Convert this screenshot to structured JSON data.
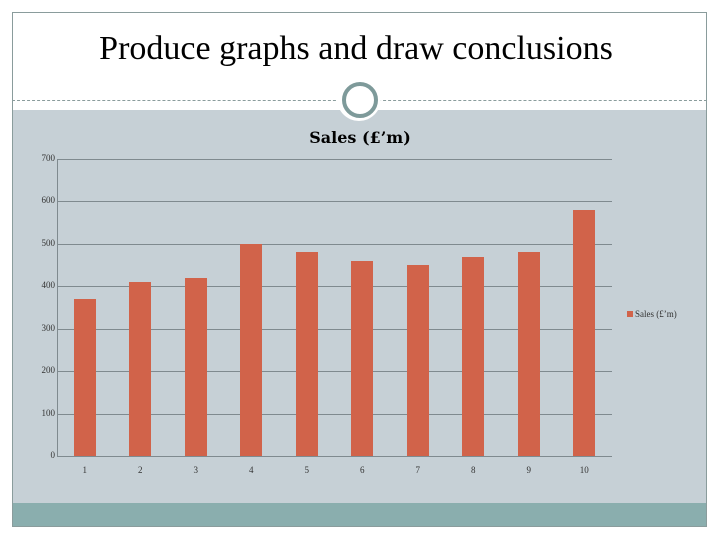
{
  "slide": {
    "title": "Produce graphs and draw conclusions"
  },
  "chart_data": {
    "type": "bar",
    "title": "Sales (£’m)",
    "xlabel": "",
    "ylabel": "",
    "categories": [
      "1",
      "2",
      "3",
      "4",
      "5",
      "6",
      "7",
      "8",
      "9",
      "10"
    ],
    "series": [
      {
        "name": "Sales (£’m)",
        "values": [
          370,
          410,
          420,
          500,
          480,
          460,
          450,
          470,
          480,
          580
        ],
        "color": "#d1634a"
      }
    ],
    "ylim": [
      0,
      700
    ],
    "yticks": [
      "0",
      "100",
      "200",
      "300",
      "400",
      "500",
      "600",
      "700"
    ],
    "grid": true,
    "legend_position": "right"
  }
}
